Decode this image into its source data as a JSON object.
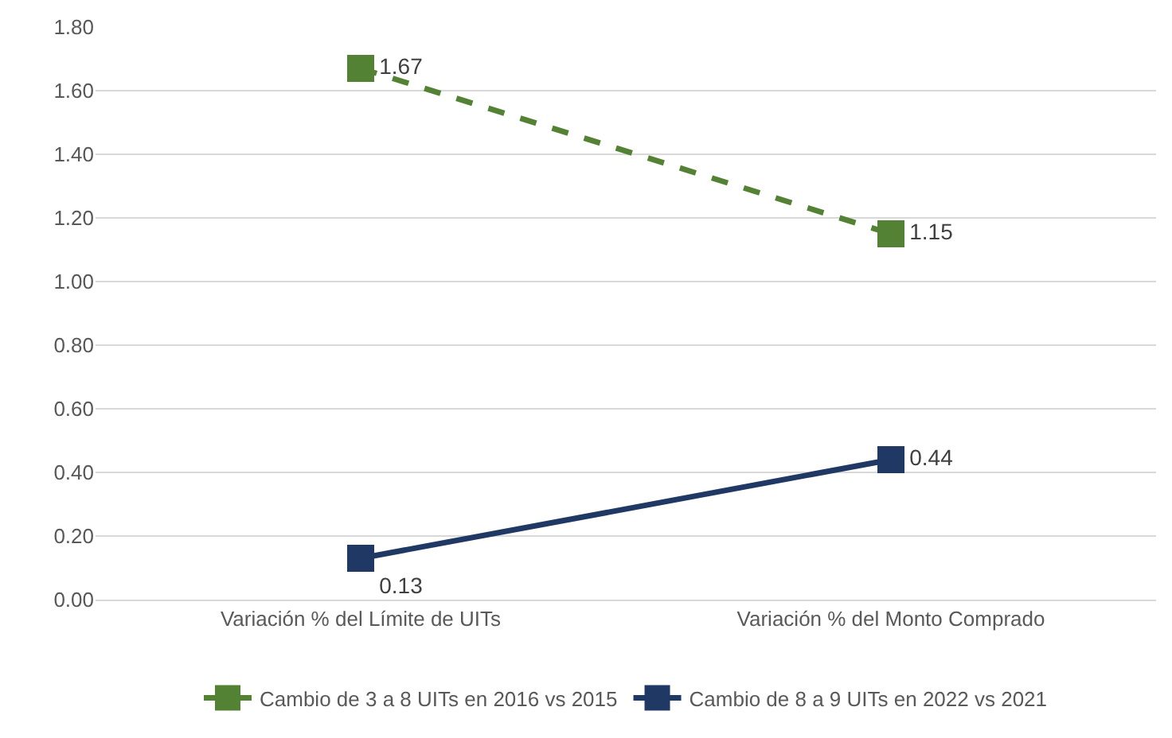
{
  "chart_data": {
    "type": "line",
    "categories": [
      "Variación % del Límite de UITs",
      "Variación % del Monto Comprado"
    ],
    "series": [
      {
        "name": "Cambio de 3 a 8 UITs en 2016 vs 2015",
        "color": "#548235",
        "values": [
          1.67,
          1.15
        ],
        "line_style": "dashed",
        "marker": "square"
      },
      {
        "name": "Cambio de 8 a 9 UITs en 2022 vs 2021",
        "color": "#1f3864",
        "values": [
          0.13,
          0.44
        ],
        "line_style": "solid",
        "marker": "square"
      }
    ],
    "ylim": [
      0,
      1.8
    ],
    "yticks": [
      {
        "value": 0,
        "label": "0.00"
      },
      {
        "value": 0.2,
        "label": "0.20"
      },
      {
        "value": 0.4,
        "label": "0.40"
      },
      {
        "value": 0.6,
        "label": "0.60"
      },
      {
        "value": 0.8,
        "label": "0.80"
      },
      {
        "value": 1.0,
        "label": "1.00"
      },
      {
        "value": 1.2,
        "label": "1.20"
      },
      {
        "value": 1.4,
        "label": "1.40"
      },
      {
        "value": 1.6,
        "label": "1.60"
      },
      {
        "value": 1.8,
        "label": "1.80"
      }
    ],
    "grid": "y",
    "legend": "bottom",
    "data_labels": true
  }
}
